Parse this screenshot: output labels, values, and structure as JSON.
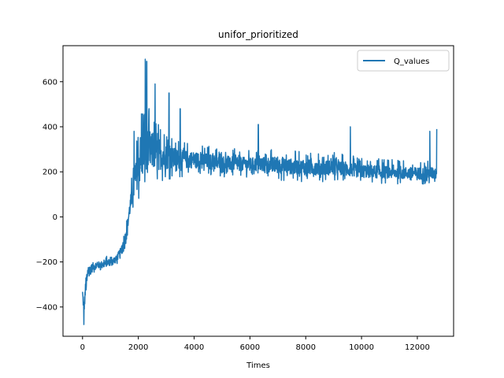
{
  "chart_data": {
    "type": "line",
    "title": "unifor_prioritized",
    "xlabel": "Times",
    "ylabel": "",
    "xlim": [
      -700,
      13300
    ],
    "ylim": [
      -530,
      760
    ],
    "xticks": [
      0,
      2000,
      4000,
      6000,
      8000,
      10000,
      12000
    ],
    "xtick_labels": [
      "0",
      "2000",
      "4000",
      "6000",
      "8000",
      "10000",
      "12000"
    ],
    "yticks": [
      -400,
      -200,
      0,
      200,
      400,
      600
    ],
    "ytick_labels": [
      "−400",
      "−200",
      "0",
      "200",
      "400",
      "600"
    ],
    "grid": false,
    "legend_position": "top-right",
    "series": [
      {
        "name": "Q_values",
        "color": "#1f77b4",
        "profile": {
          "x": [
            0,
            50,
            100,
            200,
            400,
            600,
            800,
            1000,
            1200,
            1400,
            1500,
            1600,
            1700,
            1800,
            1900,
            2000,
            2100,
            2200,
            2300,
            2500,
            2800,
            3000,
            3500,
            4000,
            5000,
            6000,
            6500,
            7000,
            8000,
            9000,
            10000,
            11000,
            12000,
            12700
          ],
          "y": [
            -340,
            -420,
            -330,
            -250,
            -220,
            -215,
            -210,
            -200,
            -190,
            -150,
            -110,
            -50,
            40,
            100,
            160,
            220,
            260,
            300,
            290,
            280,
            270,
            260,
            250,
            250,
            235,
            230,
            230,
            225,
            215,
            215,
            200,
            195,
            190,
            190
          ],
          "spread": [
            30,
            50,
            50,
            40,
            30,
            25,
            25,
            25,
            25,
            30,
            35,
            40,
            60,
            90,
            110,
            150,
            200,
            220,
            180,
            130,
            110,
            90,
            70,
            60,
            55,
            50,
            55,
            60,
            55,
            55,
            50,
            45,
            45,
            45
          ],
          "x_step": 8
        },
        "peaks": [
          {
            "x": 50,
            "y": -478
          },
          {
            "x": 1850,
            "y": 380
          },
          {
            "x": 2250,
            "y": 700
          },
          {
            "x": 2300,
            "y": 690
          },
          {
            "x": 2600,
            "y": 590
          },
          {
            "x": 3100,
            "y": 550
          },
          {
            "x": 3500,
            "y": 480
          },
          {
            "x": 6300,
            "y": 410
          },
          {
            "x": 9600,
            "y": 400
          },
          {
            "x": 12450,
            "y": 380
          },
          {
            "x": 12700,
            "y": 390
          }
        ]
      }
    ]
  }
}
